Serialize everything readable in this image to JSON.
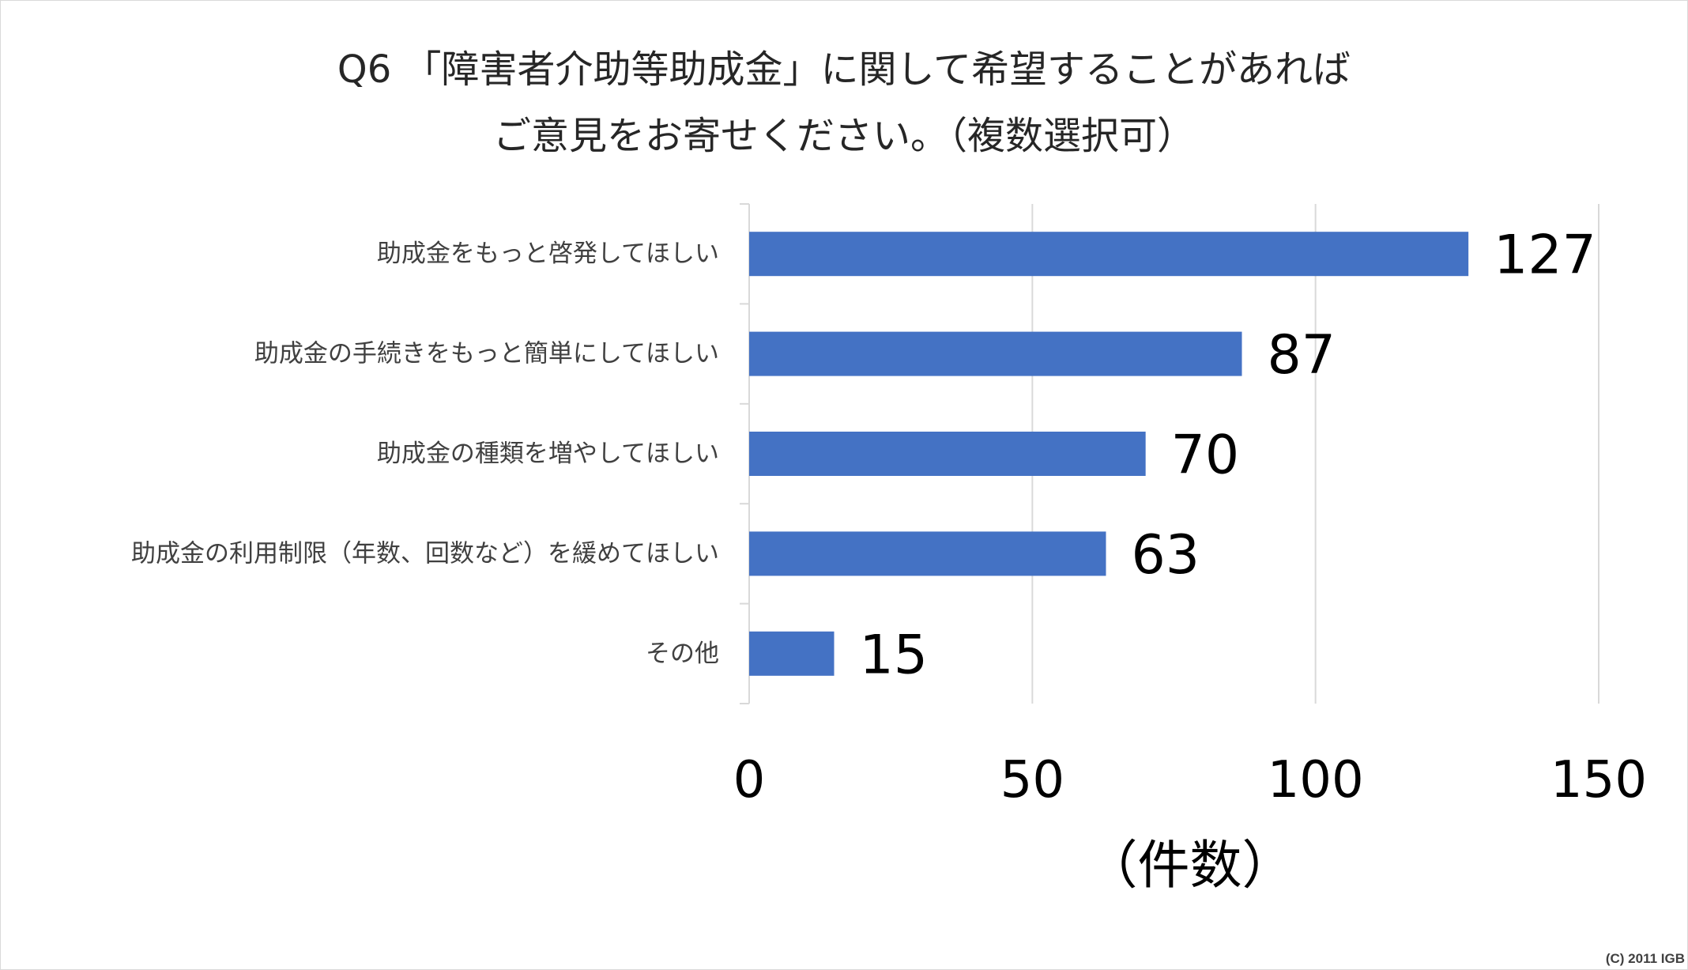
{
  "title": {
    "line1": "Q6 「障害者介助等助成金」に関して希望することがあれば",
    "line2": "ご意見をお寄せください。（複数選択可）"
  },
  "chart_data": {
    "type": "bar",
    "orientation": "horizontal",
    "categories": [
      "助成金をもっと啓発してほしい",
      "助成金の手続きをもっと簡単にしてほしい",
      "助成金の種類を増やしてほしい",
      "助成金の利用制限（年数、回数など）を緩めてほしい",
      "その他"
    ],
    "values": [
      127,
      87,
      70,
      63,
      15
    ],
    "data_labels": [
      "127",
      "87",
      "70",
      "63",
      "15"
    ],
    "xlim": [
      0,
      150
    ],
    "xticks": [
      0,
      50,
      100,
      150
    ],
    "xtick_labels": [
      "0",
      "50",
      "100",
      "150"
    ],
    "xlabel": "（件数）",
    "grid": "vertical",
    "legend": "none",
    "bar_color": "#4472C4"
  },
  "footer": {
    "credit": "(C) 2011 IGB"
  }
}
